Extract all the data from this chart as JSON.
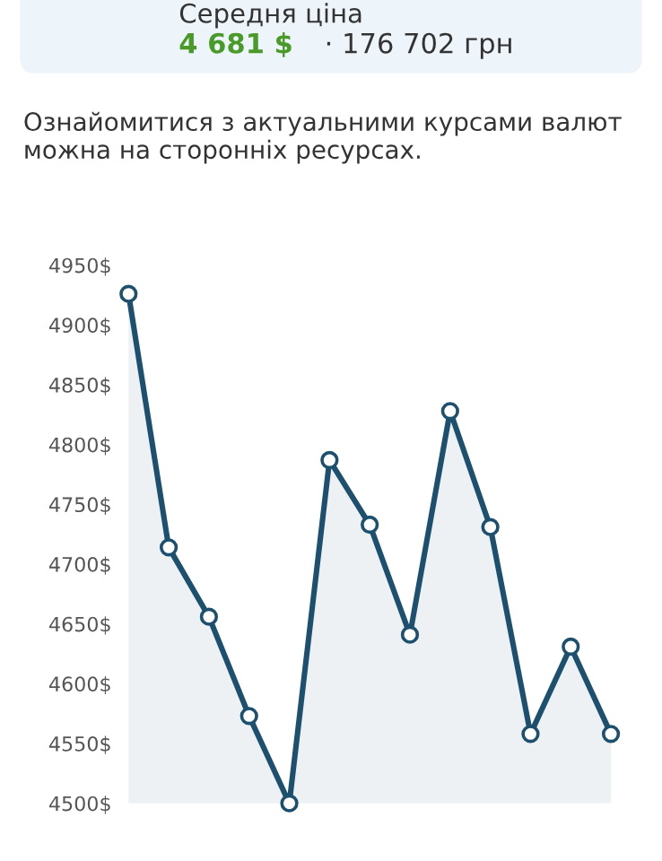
{
  "chart_data": {
    "type": "area",
    "title": "Середня ціна",
    "annotations": [
      "4 681 $",
      "· 176 702 грн",
      "Ознайомитися з актуальними курсами валют можна на сторонніх ресурсах."
    ],
    "categories": [
      null,
      null,
      null,
      null,
      null,
      null,
      null,
      null,
      null,
      null,
      null,
      null,
      null
    ],
    "series": [
      {
        "color": "#1d4f6e",
        "values": [
          4926,
          4714,
          4656,
          4573,
          4500,
          4787,
          4733,
          4641,
          4828,
          4731,
          4558,
          4631,
          4558
        ]
      }
    ],
    "ylim": [
      4500,
      4950
    ],
    "yticks": [
      {
        "value": 4500,
        "label": "4500$"
      },
      {
        "value": 4550,
        "label": "4550$"
      },
      {
        "value": 4600,
        "label": "4600$"
      },
      {
        "value": 4650,
        "label": "4650$"
      },
      {
        "value": 4700,
        "label": "4700$"
      },
      {
        "value": 4750,
        "label": "4750$"
      },
      {
        "value": 4800,
        "label": "4800$"
      },
      {
        "value": 4850,
        "label": "4850$"
      },
      {
        "value": 4900,
        "label": "4900$"
      },
      {
        "value": 4950,
        "label": "4950$"
      }
    ],
    "grid": false,
    "legend": false,
    "marker": "circle",
    "line_style": "solid",
    "tick_labels": "y"
  }
}
